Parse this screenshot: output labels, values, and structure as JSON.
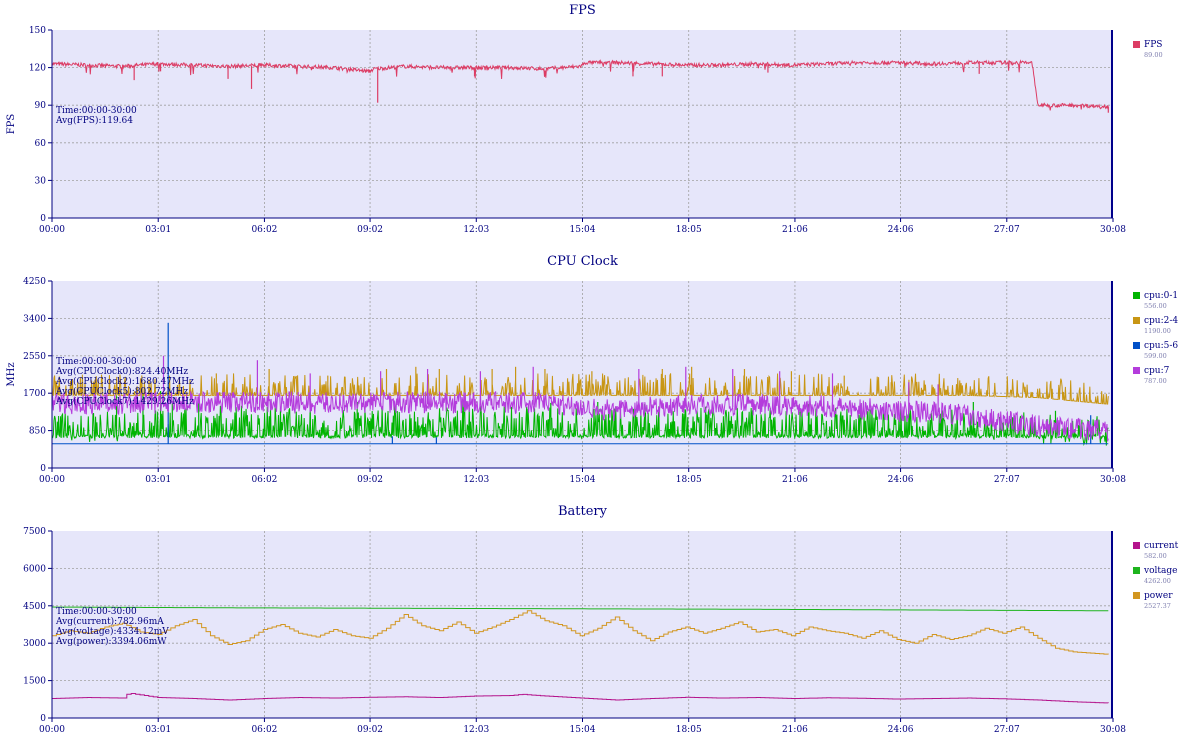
{
  "x_ticks": [
    "00:00",
    "03:01",
    "06:02",
    "09:02",
    "12:03",
    "15:04",
    "18:05",
    "21:06",
    "24:06",
    "27:07",
    "30:08"
  ],
  "colors": {
    "plot_bg": "#e6e6fa",
    "axis": "#000080",
    "text": "#000080",
    "grid": "#a0a0a0",
    "cursor": "#00008b"
  },
  "chart_data": [
    {
      "type": "line",
      "title": "FPS",
      "ylabel": "FPS",
      "ylim": [
        0,
        150
      ],
      "yticks": [
        "0",
        "30",
        "60",
        "90",
        "120",
        "150"
      ],
      "x_range": [
        "00:00",
        "30:08"
      ],
      "grid": true,
      "legend_position": "right",
      "info": [
        "Time:00:00-30:00",
        "Avg(FPS):119.64"
      ],
      "series": [
        {
          "name": "FPS",
          "legend_value": "89.00",
          "color": "#dc3c64",
          "x": [
            "00:00",
            "01:00",
            "02:00",
            "03:00",
            "04:00",
            "05:00",
            "06:00",
            "07:00",
            "08:00",
            "09:00",
            "09:10",
            "10:00",
            "11:00",
            "12:00",
            "13:00",
            "14:00",
            "15:00",
            "15:10",
            "16:00",
            "17:00",
            "18:00",
            "19:00",
            "20:00",
            "21:00",
            "22:00",
            "23:00",
            "24:00",
            "25:00",
            "26:00",
            "27:00",
            "27:50",
            "28:00",
            "29:00",
            "30:00"
          ],
          "values": [
            123,
            122,
            121,
            123,
            122,
            121,
            122,
            121,
            120,
            117,
            119,
            121,
            120,
            120,
            120,
            119,
            121,
            124,
            124,
            123,
            122,
            122,
            123,
            122,
            123,
            124,
            124,
            123,
            124,
            124,
            124,
            90,
            90,
            89
          ],
          "dips": [
            [
              "02:20",
              110
            ],
            [
              "03:05",
              117
            ],
            [
              "05:00",
              111
            ],
            [
              "05:40",
              103
            ],
            [
              "09:15",
              92
            ],
            [
              "12:00",
              113
            ],
            [
              "16:30",
              113
            ],
            [
              "17:20",
              113
            ],
            [
              "20:20",
              116
            ],
            [
              "26:20",
              115
            ],
            [
              "30:00",
              84
            ]
          ]
        }
      ]
    },
    {
      "type": "line",
      "title": "CPU Clock",
      "ylabel": "MHz",
      "ylim": [
        0,
        4250
      ],
      "yticks": [
        "0",
        "850",
        "1700",
        "2550",
        "3400",
        "4250"
      ],
      "x_range": [
        "00:00",
        "30:08"
      ],
      "grid": true,
      "legend_position": "right",
      "info": [
        "Time:00:00-30:00",
        "Avg(CPUClock0):824.40MHz",
        "Avg(CPUClock2):1680.47MHz",
        "Avg(CPUClock5):802.72MHz",
        "Avg(CPUClock7):1429.26MHz"
      ],
      "series": [
        {
          "name": "cpu:0-1",
          "legend_value": "556.00",
          "color": "#00b400",
          "x": [
            "00:00",
            "02:00",
            "04:00",
            "06:00",
            "08:00",
            "10:00",
            "12:00",
            "14:00",
            "16:00",
            "18:00",
            "20:00",
            "22:00",
            "24:00",
            "26:00",
            "28:00",
            "30:00"
          ],
          "values": [
            700,
            750,
            850,
            880,
            870,
            860,
            880,
            860,
            870,
            850,
            840,
            860,
            830,
            820,
            700,
            650
          ],
          "spikes": [
            [
              "01:50",
              1650
            ],
            [
              "02:35",
              1700
            ],
            [
              "03:05",
              1750
            ],
            [
              "03:25",
              1500
            ],
            [
              "04:10",
              1600
            ],
            [
              "07:20",
              1580
            ],
            [
              "08:40",
              1500
            ],
            [
              "11:40",
              1520
            ],
            [
              "14:10",
              1480
            ],
            [
              "15:30",
              1500
            ],
            [
              "16:50",
              1450
            ],
            [
              "21:30",
              1450
            ],
            [
              "26:10",
              1500
            ],
            [
              "28:30",
              1300
            ]
          ]
        },
        {
          "name": "cpu:2-4",
          "legend_value": "1190.00",
          "color": "#c89614",
          "x": [
            "00:00",
            "02:00",
            "04:00",
            "06:00",
            "08:00",
            "10:00",
            "12:00",
            "14:00",
            "16:00",
            "18:00",
            "20:00",
            "22:00",
            "24:00",
            "26:00",
            "28:00",
            "30:00"
          ],
          "values": [
            1650,
            1650,
            1650,
            1650,
            1650,
            1650,
            1650,
            1650,
            1650,
            1650,
            1650,
            1650,
            1650,
            1650,
            1600,
            1450
          ],
          "spikes": [
            [
              "04:40",
              2150
            ],
            [
              "06:10",
              2250
            ],
            [
              "07:50",
              2100
            ],
            [
              "09:30",
              2250
            ],
            [
              "10:20",
              2300
            ],
            [
              "11:00",
              2250
            ],
            [
              "12:30",
              2250
            ],
            [
              "13:10",
              2300
            ],
            [
              "14:00",
              2250
            ],
            [
              "15:20",
              2200
            ],
            [
              "17:20",
              2250
            ],
            [
              "18:10",
              2300
            ],
            [
              "19:40",
              2250
            ],
            [
              "21:00",
              2200
            ],
            [
              "22:30",
              2100
            ],
            [
              "23:50",
              1950
            ],
            [
              "25:10",
              1900
            ]
          ]
        },
        {
          "name": "cpu:5-6",
          "legend_value": "599.00",
          "color": "#0050c8",
          "x": [
            "00:00",
            "06:00",
            "12:00",
            "18:00",
            "24:00",
            "30:00"
          ],
          "values": [
            550,
            550,
            550,
            550,
            550,
            550
          ],
          "spikes": [
            [
              "03:18",
              3300
            ],
            [
              "09:40",
              720
            ],
            [
              "10:55",
              700
            ],
            [
              "29:30",
              1200
            ]
          ]
        },
        {
          "name": "cpu:7",
          "legend_value": "787.00",
          "color": "#b43cdc",
          "x": [
            "00:00",
            "02:00",
            "04:00",
            "06:00",
            "08:00",
            "10:00",
            "12:00",
            "14:00",
            "16:00",
            "18:00",
            "20:00",
            "22:00",
            "24:00",
            "26:00",
            "28:00",
            "30:00"
          ],
          "values": [
            1400,
            1420,
            1450,
            1450,
            1420,
            1450,
            1430,
            1440,
            1250,
            1400,
            1380,
            1350,
            1250,
            1150,
            900,
            800
          ],
          "spikes": [
            [
              "03:10",
              2550
            ],
            [
              "05:50",
              2450
            ],
            [
              "07:20",
              2150
            ],
            [
              "09:20",
              2200
            ],
            [
              "10:40",
              2250
            ],
            [
              "12:10",
              2200
            ],
            [
              "13:40",
              2300
            ],
            [
              "16:40",
              2250
            ],
            [
              "18:00",
              2300
            ],
            [
              "19:20",
              2250
            ],
            [
              "20:40",
              2200
            ],
            [
              "22:10",
              2150
            ],
            [
              "24:20",
              1950
            ],
            [
              "25:10",
              1900
            ]
          ]
        }
      ]
    },
    {
      "type": "line",
      "title": "Battery",
      "ylabel": "",
      "ylim": [
        0,
        7500
      ],
      "yticks": [
        "0",
        "1500",
        "3000",
        "4500",
        "6000",
        "7500"
      ],
      "x_range": [
        "00:00",
        "30:08"
      ],
      "grid": true,
      "legend_position": "right",
      "info": [
        "Time:00:00-30:00",
        "Avg(current):782.96mA",
        "Avg(voltage):4334.12mV",
        "Avg(power):3394.06mW"
      ],
      "series": [
        {
          "name": "current",
          "legend_value": "582.00",
          "color": "#b4148c",
          "x": [
            "00:00",
            "01:00",
            "02:00",
            "02:10",
            "03:00",
            "04:00",
            "05:00",
            "06:00",
            "07:00",
            "08:00",
            "09:00",
            "10:00",
            "11:00",
            "12:00",
            "13:00",
            "13:20",
            "14:00",
            "15:00",
            "16:00",
            "17:00",
            "18:00",
            "19:00",
            "20:00",
            "21:00",
            "22:00",
            "23:00",
            "24:00",
            "25:00",
            "26:00",
            "27:00",
            "28:00",
            "29:00",
            "30:00"
          ],
          "values": [
            780,
            820,
            800,
            1000,
            820,
            780,
            720,
            780,
            820,
            800,
            830,
            850,
            820,
            880,
            900,
            950,
            880,
            800,
            720,
            780,
            830,
            800,
            820,
            780,
            810,
            790,
            760,
            780,
            800,
            770,
            720,
            650,
            600
          ]
        },
        {
          "name": "voltage",
          "legend_value": "4262.00",
          "color": "#1eb41e",
          "x": [
            "00:00",
            "05:00",
            "10:00",
            "15:00",
            "20:00",
            "25:00",
            "30:00"
          ],
          "values": [
            4450,
            4420,
            4400,
            4380,
            4360,
            4330,
            4300
          ]
        },
        {
          "name": "power",
          "legend_value": "2527.37",
          "color": "#d29620",
          "x": [
            "00:00",
            "00:30",
            "01:00",
            "01:30",
            "02:00",
            "02:30",
            "03:00",
            "03:30",
            "04:00",
            "04:30",
            "05:00",
            "05:30",
            "06:00",
            "06:30",
            "07:00",
            "07:30",
            "08:00",
            "08:30",
            "09:00",
            "09:30",
            "10:00",
            "10:30",
            "11:00",
            "11:30",
            "12:00",
            "12:30",
            "13:00",
            "13:30",
            "14:00",
            "14:30",
            "15:00",
            "15:30",
            "16:00",
            "16:30",
            "17:00",
            "17:30",
            "18:00",
            "18:30",
            "19:00",
            "19:30",
            "20:00",
            "20:30",
            "21:00",
            "21:30",
            "22:00",
            "22:30",
            "23:00",
            "23:30",
            "24:00",
            "24:30",
            "25:00",
            "25:30",
            "26:00",
            "26:30",
            "27:00",
            "27:30",
            "28:00",
            "28:30",
            "29:00",
            "29:30",
            "30:00"
          ],
          "values": [
            3300,
            3500,
            3400,
            3650,
            3800,
            3450,
            3350,
            3700,
            3950,
            3300,
            2950,
            3100,
            3550,
            3750,
            3400,
            3250,
            3550,
            3300,
            3200,
            3600,
            4150,
            3700,
            3500,
            3850,
            3400,
            3650,
            3950,
            4300,
            3900,
            3700,
            3300,
            3600,
            4050,
            3500,
            3100,
            3450,
            3650,
            3400,
            3600,
            3850,
            3450,
            3550,
            3300,
            3650,
            3500,
            3400,
            3200,
            3500,
            3150,
            3000,
            3350,
            3150,
            3300,
            3600,
            3400,
            3650,
            3200,
            2800,
            2650,
            2600,
            2550
          ]
        }
      ]
    }
  ]
}
